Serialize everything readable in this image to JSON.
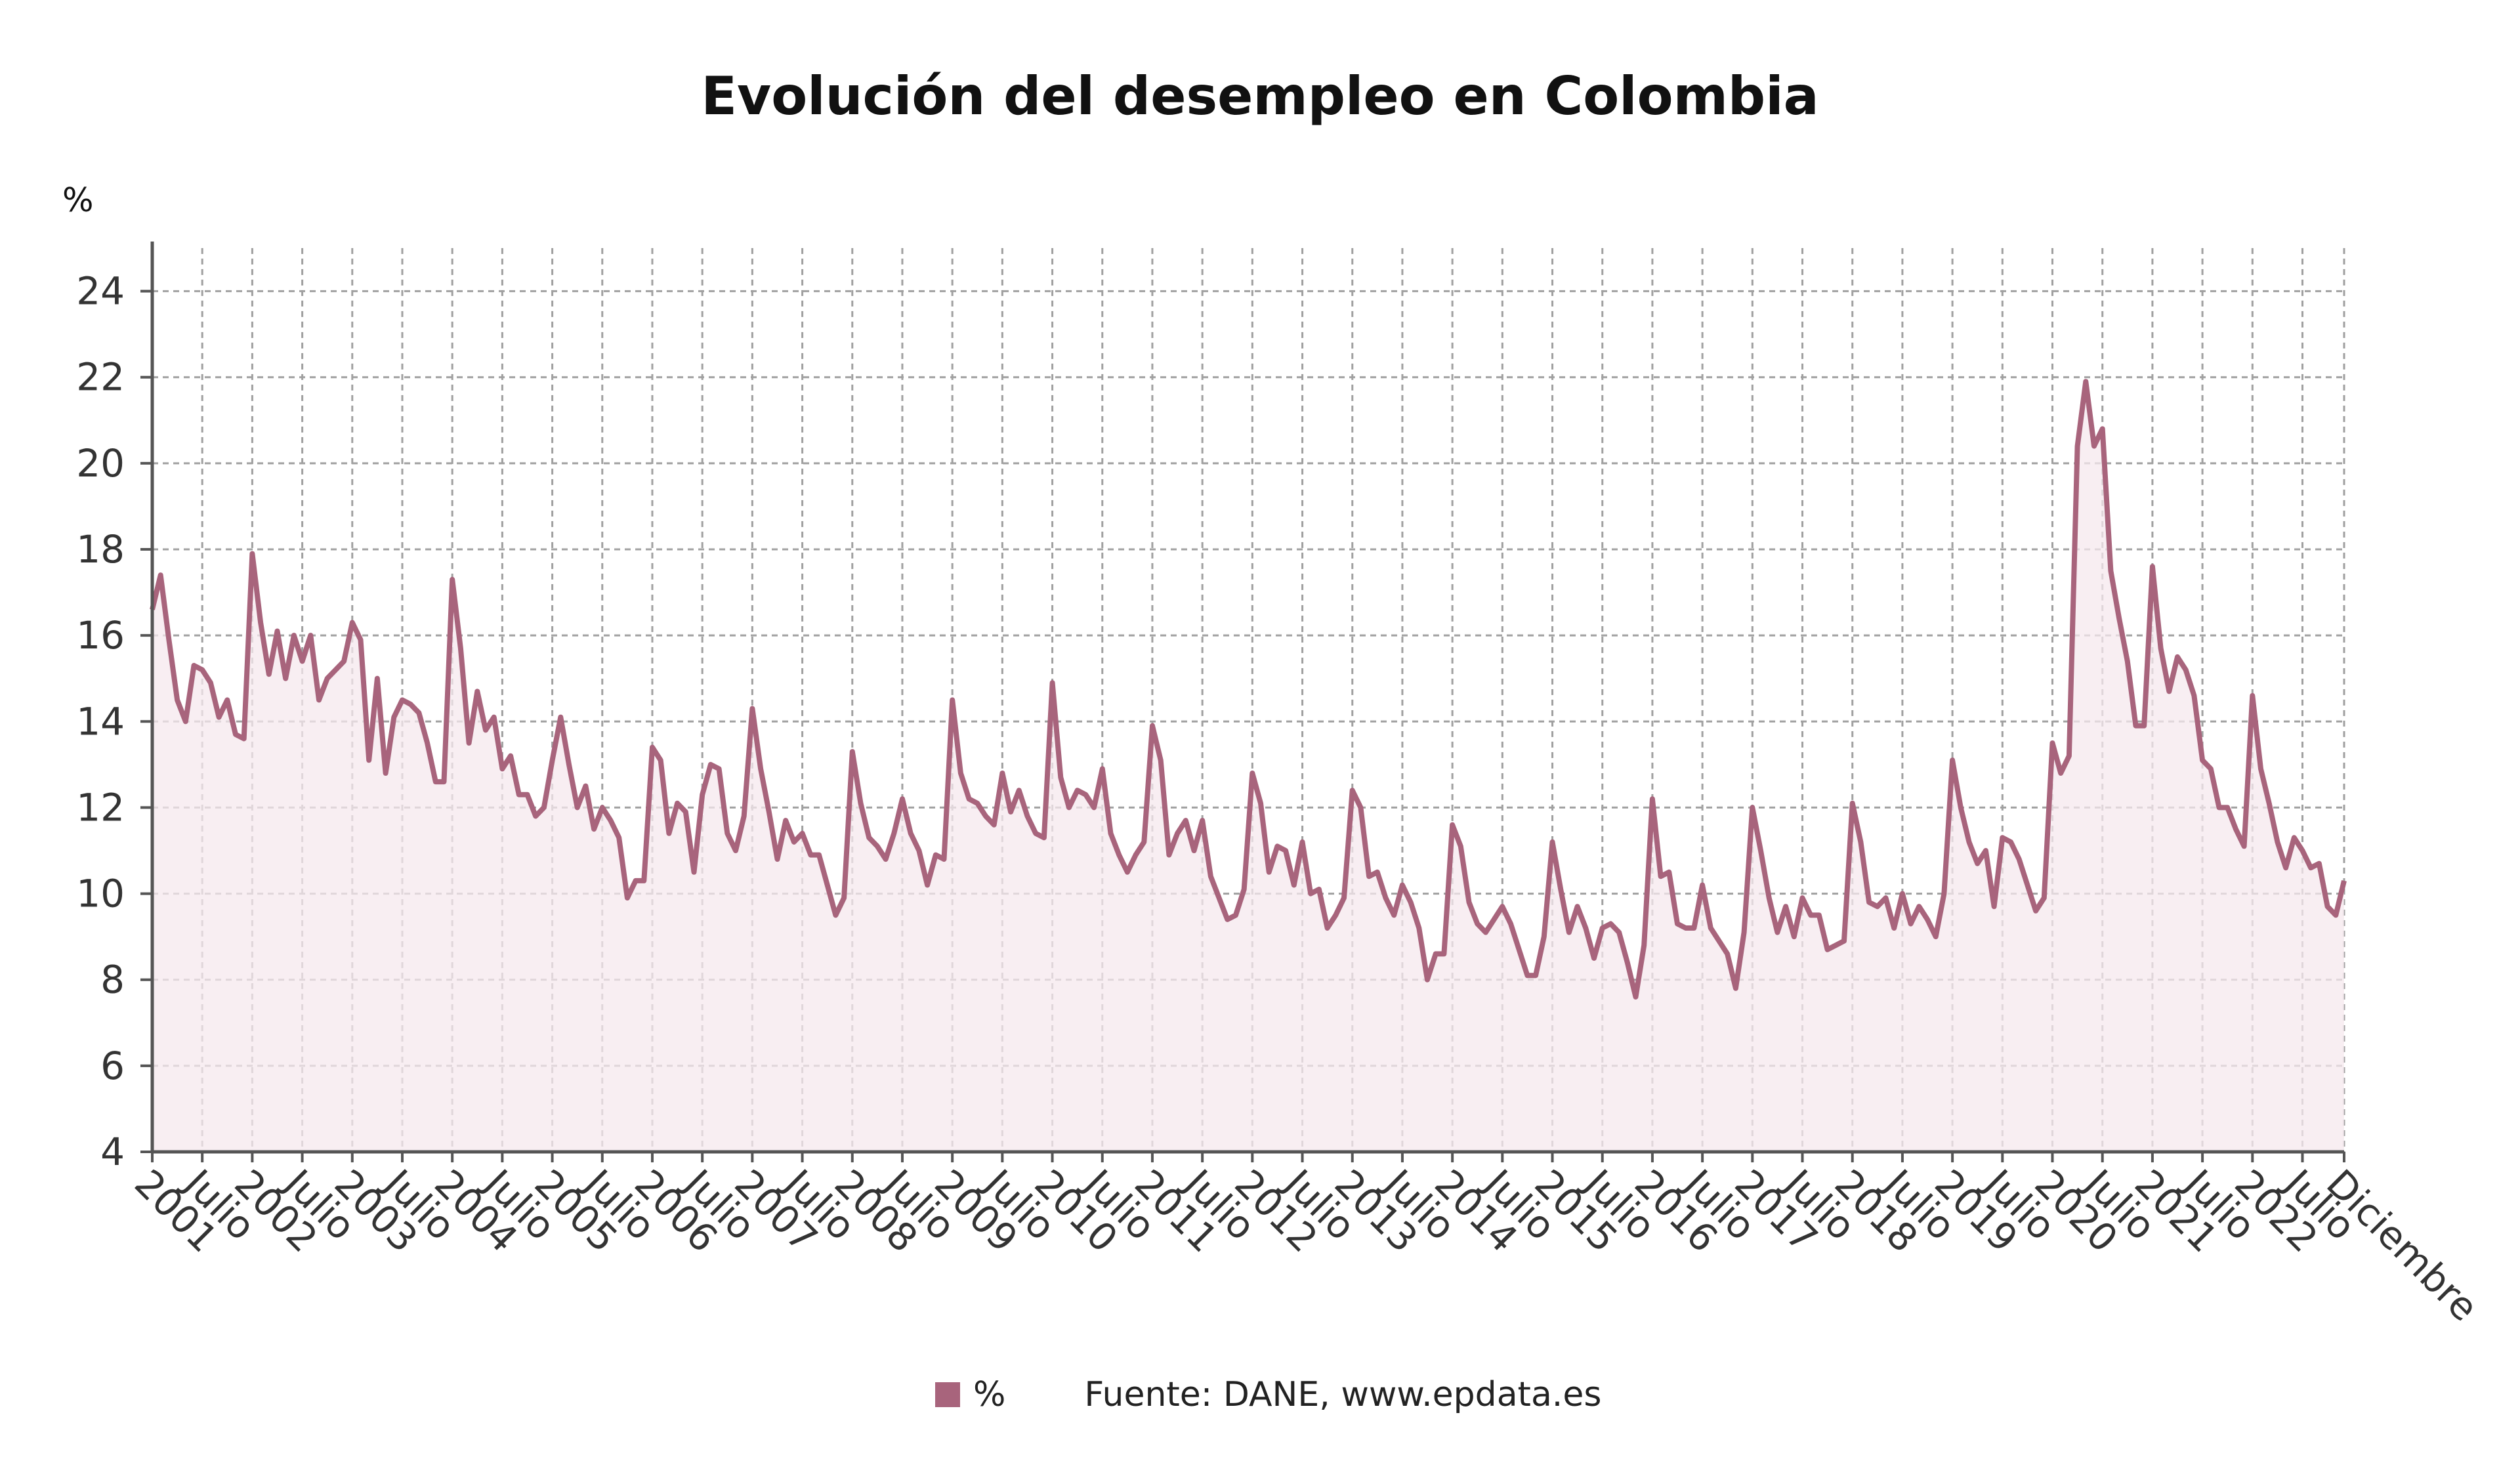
{
  "source": "Fuente: DANE, www.epdata.es",
  "colors": {
    "line": "#a8647c",
    "fill": "#f6e8ee",
    "grid": "#a0a0a0",
    "axis": "#555555"
  },
  "chart_data": {
    "type": "area",
    "title": "Evolución del desempleo en Colombia",
    "ylabel": "%",
    "xlabel": "",
    "ylim": [
      4,
      25
    ],
    "yticks": [
      4,
      6,
      8,
      10,
      12,
      14,
      16,
      18,
      20,
      22,
      24
    ],
    "grid": true,
    "legend_placement": "bottom",
    "x_range": [
      "2001-01",
      "2022-12"
    ],
    "x_ticks": [
      {
        "label": "2001",
        "month": 0
      },
      {
        "label": "Julio",
        "month": 6
      },
      {
        "label": "2002",
        "month": 12
      },
      {
        "label": "Julio",
        "month": 18
      },
      {
        "label": "2003",
        "month": 24
      },
      {
        "label": "Julio",
        "month": 30
      },
      {
        "label": "2004",
        "month": 36
      },
      {
        "label": "Julio",
        "month": 42
      },
      {
        "label": "2005",
        "month": 48
      },
      {
        "label": "Julio",
        "month": 54
      },
      {
        "label": "2006",
        "month": 60
      },
      {
        "label": "Julio",
        "month": 66
      },
      {
        "label": "2007",
        "month": 72
      },
      {
        "label": "Julio",
        "month": 78
      },
      {
        "label": "2008",
        "month": 84
      },
      {
        "label": "Julio",
        "month": 90
      },
      {
        "label": "2009",
        "month": 96
      },
      {
        "label": "Julio",
        "month": 102
      },
      {
        "label": "2010",
        "month": 108
      },
      {
        "label": "Julio",
        "month": 114
      },
      {
        "label": "2011",
        "month": 120
      },
      {
        "label": "Julio",
        "month": 126
      },
      {
        "label": "2012",
        "month": 132
      },
      {
        "label": "Julio",
        "month": 138
      },
      {
        "label": "2013",
        "month": 144
      },
      {
        "label": "Julio",
        "month": 150
      },
      {
        "label": "2014",
        "month": 156
      },
      {
        "label": "Julio",
        "month": 162
      },
      {
        "label": "2015",
        "month": 168
      },
      {
        "label": "Julio",
        "month": 174
      },
      {
        "label": "2016",
        "month": 180
      },
      {
        "label": "Julio",
        "month": 186
      },
      {
        "label": "2017",
        "month": 192
      },
      {
        "label": "Julio",
        "month": 198
      },
      {
        "label": "2018",
        "month": 204
      },
      {
        "label": "Julio",
        "month": 210
      },
      {
        "label": "2019",
        "month": 216
      },
      {
        "label": "Julio",
        "month": 222
      },
      {
        "label": "2020",
        "month": 228
      },
      {
        "label": "Julio",
        "month": 234
      },
      {
        "label": "2021",
        "month": 240
      },
      {
        "label": "Julio",
        "month": 246
      },
      {
        "label": "2022",
        "month": 252
      },
      {
        "label": "Julio",
        "month": 258
      },
      {
        "label": "Diciembre",
        "month": 263
      }
    ],
    "series": [
      {
        "name": "%",
        "values": [
          16.6,
          17.4,
          15.9,
          14.5,
          14.0,
          15.3,
          15.2,
          14.9,
          14.1,
          14.5,
          13.7,
          13.6,
          17.9,
          16.3,
          15.1,
          16.1,
          15.0,
          16.0,
          15.4,
          16.0,
          14.5,
          15.0,
          15.2,
          15.4,
          16.3,
          15.9,
          13.1,
          15.0,
          12.8,
          14.1,
          14.5,
          14.4,
          14.2,
          13.5,
          12.6,
          12.6,
          17.3,
          15.7,
          13.5,
          14.7,
          13.8,
          14.1,
          12.9,
          13.2,
          12.3,
          12.3,
          11.8,
          12.0,
          13.1,
          14.1,
          13.0,
          12.0,
          12.5,
          11.5,
          12.0,
          11.7,
          11.3,
          9.9,
          10.3,
          10.3,
          13.4,
          13.1,
          11.4,
          12.1,
          11.9,
          10.5,
          12.3,
          13.0,
          12.9,
          11.4,
          11.0,
          11.8,
          14.3,
          12.9,
          11.9,
          10.8,
          11.7,
          11.2,
          11.4,
          10.9,
          10.9,
          10.2,
          9.5,
          9.9,
          13.3,
          12.1,
          11.3,
          11.1,
          10.8,
          11.4,
          12.2,
          11.4,
          11.0,
          10.2,
          10.9,
          10.8,
          14.5,
          12.8,
          12.2,
          12.1,
          11.8,
          11.6,
          12.8,
          11.9,
          12.4,
          11.8,
          11.4,
          11.3,
          14.9,
          12.7,
          12.0,
          12.4,
          12.3,
          12.0,
          12.9,
          11.4,
          10.9,
          10.5,
          10.9,
          11.2,
          13.9,
          13.1,
          10.9,
          11.4,
          11.7,
          11.0,
          11.7,
          10.4,
          9.9,
          9.4,
          9.5,
          10.1,
          12.8,
          12.1,
          10.5,
          11.1,
          11.0,
          10.2,
          11.2,
          10.0,
          10.1,
          9.2,
          9.5,
          9.9,
          12.4,
          12.0,
          10.4,
          10.5,
          9.9,
          9.5,
          10.2,
          9.8,
          9.2,
          8.0,
          8.6,
          8.6,
          11.6,
          11.1,
          9.8,
          9.3,
          9.1,
          9.4,
          9.7,
          9.3,
          8.7,
          8.1,
          8.1,
          9.0,
          11.2,
          10.1,
          9.1,
          9.7,
          9.2,
          8.5,
          9.2,
          9.3,
          9.1,
          8.4,
          7.6,
          8.8,
          12.2,
          10.4,
          10.5,
          9.3,
          9.2,
          9.2,
          10.2,
          9.2,
          8.9,
          8.6,
          7.8,
          9.1,
          12.0,
          11.0,
          9.9,
          9.1,
          9.7,
          9.0,
          9.9,
          9.5,
          9.5,
          8.7,
          8.8,
          8.9,
          12.1,
          11.2,
          9.8,
          9.7,
          9.9,
          9.2,
          10.0,
          9.3,
          9.7,
          9.4,
          9.0,
          10.0,
          13.1,
          12.0,
          11.2,
          10.7,
          11.0,
          9.7,
          11.3,
          11.2,
          10.8,
          10.2,
          9.6,
          9.9,
          13.5,
          12.8,
          13.2,
          20.4,
          21.9,
          20.4,
          20.8,
          17.5,
          16.4,
          15.4,
          13.9,
          13.9,
          17.6,
          15.7,
          14.7,
          15.5,
          15.2,
          14.6,
          13.1,
          12.9,
          12.0,
          12.0,
          11.5,
          11.1,
          14.6,
          12.9,
          12.1,
          11.2,
          10.6,
          11.3,
          11.0,
          10.6,
          10.7,
          9.7,
          9.5,
          10.3
        ]
      }
    ]
  }
}
